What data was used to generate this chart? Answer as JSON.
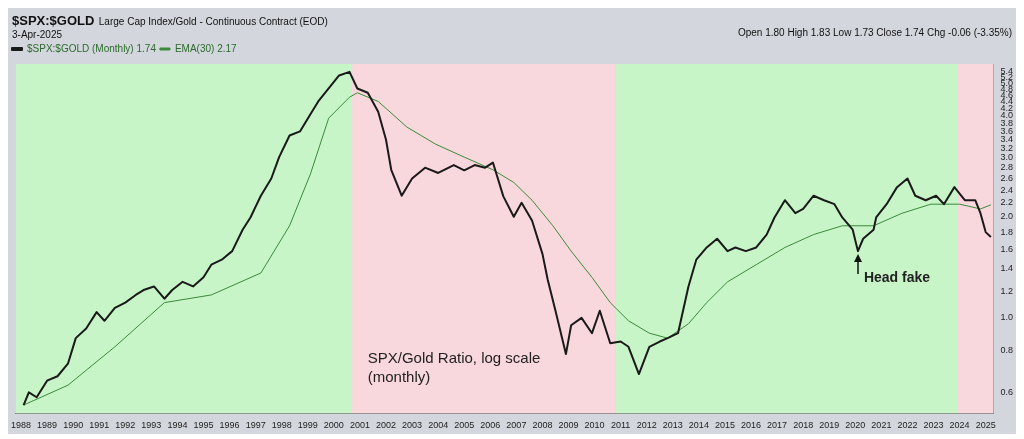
{
  "chart_data": {
    "type": "line",
    "title": "$SPX:$GOLD",
    "subtitle": "Large Cap Index/Gold - Continuous Contract (EOD)",
    "annotations": [
      "3-Apr-2025",
      "Open 1.80 High 1.83 Low 1.73 Close 1.74 Chg -0.06 (-3.35%)",
      "SPX/Gold Ratio, log scale\n(monthly)",
      {
        "text": "Head fake",
        "x": 2020.1,
        "y": 1.58
      }
    ],
    "series": [
      {
        "name": "$SPX:$GOLD (Monthly) 1.74",
        "color": "#1a1a1a",
        "x": [
          1988.1,
          1988.3,
          1988.6,
          1989.0,
          1989.4,
          1989.8,
          1990.1,
          1990.5,
          1990.9,
          1991.2,
          1991.6,
          1992.0,
          1992.4,
          1992.7,
          1993.1,
          1993.5,
          1993.8,
          1994.2,
          1994.6,
          1995.0,
          1995.3,
          1995.7,
          1996.1,
          1996.5,
          1996.8,
          1997.2,
          1997.6,
          1997.9,
          1998.3,
          1998.7,
          1999.1,
          1999.4,
          1999.8,
          2000.2,
          2000.6,
          2000.9,
          2001.3,
          2001.7,
          2002.0,
          2002.2,
          2002.6,
          2003.0,
          2003.5,
          2004.0,
          2004.6,
          2005.0,
          2005.4,
          2005.8,
          2006.1,
          2006.5,
          2006.9,
          2007.2,
          2007.6,
          2008.0,
          2008.2,
          2008.5,
          2008.9,
          2009.1,
          2009.5,
          2009.9,
          2010.2,
          2010.6,
          2011.0,
          2011.3,
          2011.7,
          2012.1,
          2012.5,
          2012.8,
          2013.2,
          2013.6,
          2013.9,
          2014.3,
          2014.7,
          2015.1,
          2015.4,
          2015.8,
          2016.2,
          2016.6,
          2016.9,
          2017.3,
          2017.7,
          2018.0,
          2018.4,
          2018.8,
          2019.2,
          2019.5,
          2019.9,
          2020.1,
          2020.3,
          2020.7,
          2020.8,
          2021.2,
          2021.6,
          2022.0,
          2022.3,
          2022.7,
          2023.1,
          2023.4,
          2023.8,
          2024.2,
          2024.6,
          2024.8,
          2025.0,
          2025.2
        ],
        "values": [
          0.55,
          0.6,
          0.58,
          0.65,
          0.67,
          0.73,
          0.87,
          0.93,
          1.04,
          0.98,
          1.07,
          1.11,
          1.17,
          1.21,
          1.24,
          1.14,
          1.21,
          1.28,
          1.24,
          1.32,
          1.44,
          1.49,
          1.58,
          1.83,
          1.99,
          2.31,
          2.6,
          3.01,
          3.49,
          3.59,
          4.04,
          4.41,
          4.82,
          5.27,
          5.4,
          4.82,
          4.68,
          4.11,
          3.39,
          2.76,
          2.31,
          2.6,
          2.8,
          2.7,
          2.85,
          2.75,
          2.85,
          2.8,
          2.9,
          2.3,
          2.0,
          2.2,
          1.95,
          1.55,
          1.3,
          1.05,
          0.78,
          0.95,
          1.0,
          0.9,
          1.05,
          0.84,
          0.85,
          0.82,
          0.68,
          0.82,
          0.85,
          0.87,
          0.9,
          1.24,
          1.49,
          1.62,
          1.72,
          1.58,
          1.62,
          1.58,
          1.62,
          1.77,
          1.99,
          2.24,
          2.05,
          2.11,
          2.31,
          2.24,
          2.18,
          1.99,
          1.83,
          1.58,
          1.72,
          1.83,
          1.99,
          2.18,
          2.45,
          2.6,
          2.31,
          2.24,
          2.31,
          2.18,
          2.45,
          2.24,
          2.24,
          2.05,
          1.8,
          1.74
        ]
      },
      {
        "name": "EMA(30) 2.17",
        "color": "#3a8a3a",
        "x": [
          1988.1,
          1989.8,
          1991.6,
          1993.5,
          1995.3,
          1997.2,
          1998.3,
          1999.1,
          1999.8,
          2000.6,
          2000.9,
          2001.7,
          2002.8,
          2003.9,
          2005.0,
          2006.1,
          2006.9,
          2007.6,
          2008.4,
          2009.1,
          2009.9,
          2010.6,
          2011.3,
          2012.1,
          2012.8,
          2013.6,
          2014.3,
          2015.1,
          2016.2,
          2017.3,
          2018.4,
          2019.5,
          2020.7,
          2021.8,
          2022.9,
          2024.0,
          2024.8,
          2025.2
        ],
        "values": [
          0.55,
          0.63,
          0.82,
          1.11,
          1.17,
          1.36,
          1.88,
          2.68,
          3.93,
          4.54,
          4.68,
          4.41,
          3.7,
          3.29,
          3.01,
          2.76,
          2.53,
          2.24,
          1.88,
          1.58,
          1.32,
          1.11,
          0.98,
          0.9,
          0.87,
          0.96,
          1.11,
          1.28,
          1.44,
          1.62,
          1.77,
          1.88,
          1.88,
          2.05,
          2.18,
          2.18,
          2.11,
          2.17
        ]
      }
    ],
    "bands": [
      {
        "axis": "x",
        "from": 1987.8,
        "to": 2000.7,
        "color": "#c8f5c8"
      },
      {
        "axis": "x",
        "from": 2000.7,
        "to": 2010.8,
        "color": "#f8d8dc"
      },
      {
        "axis": "x",
        "from": 2010.8,
        "to": 2023.9,
        "color": "#c8f5c8"
      },
      {
        "axis": "x",
        "from": 2023.9,
        "to": 2025.3,
        "color": "#f8d8dc"
      }
    ],
    "log": "y",
    "ylim": [
      0.52,
      5.7
    ],
    "yticks": [
      0.6,
      0.8,
      {
        "value": 1,
        "label": "1.0"
      },
      1.2,
      1.4,
      1.6,
      1.8,
      {
        "value": 2,
        "label": "2.0"
      },
      2.2,
      2.4,
      2.6,
      2.8,
      {
        "value": 3,
        "label": "3.0"
      },
      3.2,
      3.4,
      3.6,
      3.8,
      {
        "value": 4,
        "label": "4.0"
      },
      4.2,
      4.4,
      4.6,
      4.8,
      {
        "value": 5,
        "label": "5.0"
      },
      5.2,
      5.4
    ],
    "xlim": [
      1987.8,
      2025.3
    ],
    "xticks": [
      1988,
      1989,
      1990,
      1991,
      1992,
      1993,
      1994,
      1995,
      1996,
      1997,
      1998,
      1999,
      2000,
      2001,
      2002,
      2003,
      2004,
      2005,
      2006,
      2007,
      2008,
      2009,
      2010,
      2011,
      2012,
      2013,
      2014,
      2015,
      2016,
      2017,
      2018,
      2019,
      2020,
      2021,
      2022,
      2023,
      2024,
      2025
    ],
    "grid": false,
    "legend": "top left",
    "marker": "none",
    "line_style": "solid"
  }
}
